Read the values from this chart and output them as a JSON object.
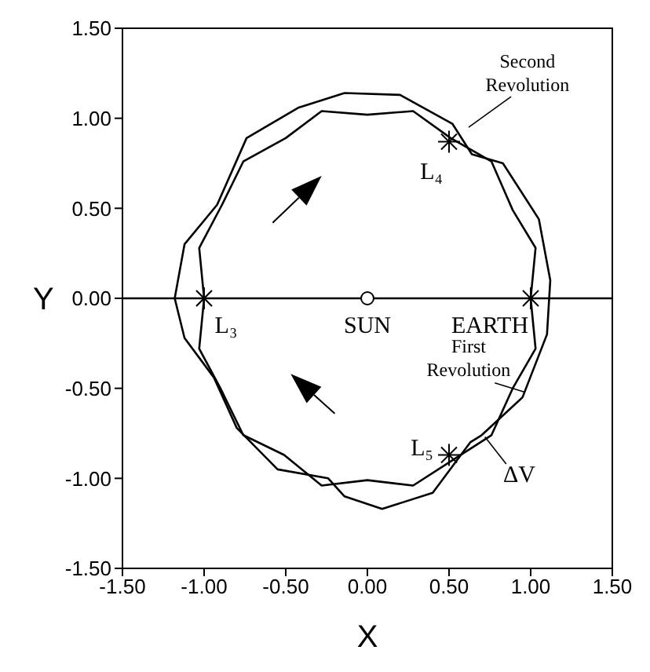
{
  "chart_data": {
    "type": "scatter",
    "xlabel": "X",
    "ylabel": "Y",
    "xlim": [
      -1.5,
      1.5
    ],
    "ylim": [
      -1.5,
      1.5
    ],
    "xticks": [
      {
        "value": -1.5,
        "label": "-1.50"
      },
      {
        "value": -1,
        "label": "-1.00"
      },
      {
        "value": -0.5,
        "label": "-0.50"
      },
      {
        "value": 0,
        "label": "0.00"
      },
      {
        "value": 0.5,
        "label": "0.50"
      },
      {
        "value": 1,
        "label": "1.00"
      },
      {
        "value": 1.5,
        "label": "1.50"
      }
    ],
    "yticks": [
      {
        "value": -1.5,
        "label": "-1.50"
      },
      {
        "value": -1,
        "label": "-1.00"
      },
      {
        "value": -0.5,
        "label": "-0.50"
      },
      {
        "value": 0,
        "label": "0.00"
      },
      {
        "value": 0.5,
        "label": "0.50"
      },
      {
        "value": 1,
        "label": "1.00"
      },
      {
        "value": 1.5,
        "label": "1.50"
      }
    ],
    "series": [
      {
        "color": "#000000",
        "marker": "cross",
        "x": [
          -1.0,
          0.5,
          0.5,
          1.0
        ],
        "values": [
          0.0,
          0.87,
          -0.87,
          0.0
        ]
      },
      {
        "color": "#000000",
        "marker": "circle",
        "x": [
          0.0
        ],
        "values": [
          0.0
        ]
      }
    ],
    "ref_lines": [
      {
        "axis": "y",
        "value": 0,
        "color": "#000000"
      }
    ],
    "annotations": [
      "Second Revolution",
      "First Revolution",
      "ΔV",
      {
        "text": "L₃",
        "x": -1.0,
        "y": 0.0
      },
      {
        "text": "L₄",
        "x": 0.5,
        "y": 0.87
      },
      {
        "text": "L₅",
        "x": 0.5,
        "y": -0.87
      },
      {
        "text": "SUN",
        "x": 0.0,
        "y": 0.0
      },
      {
        "text": "EARTH",
        "x": 1.0,
        "y": 0.0
      }
    ]
  }
}
